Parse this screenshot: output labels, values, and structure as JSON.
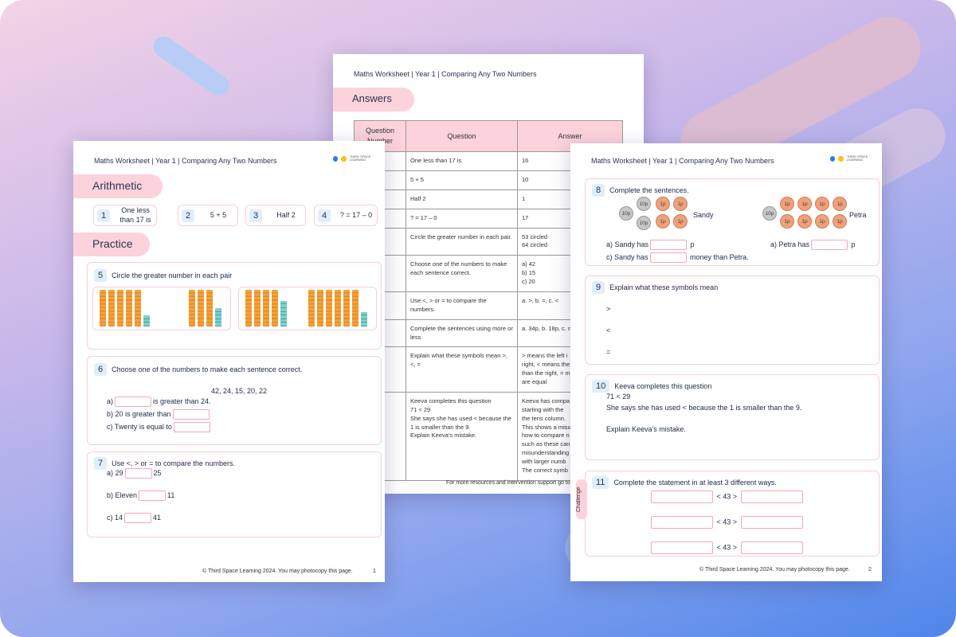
{
  "header": "Maths Worksheet | Year 1 | Comparing Any Two Numbers",
  "logo": {
    "text": "THIRD SPACE LEARNING",
    "colors": [
      "#2b7de9",
      "#f6c21c"
    ]
  },
  "colors": {
    "accent_pink": "#fcd3dc",
    "number_badge": "#dfeefb",
    "tens_rod": "#f4a23c",
    "ones_cube": "#7ed0c9"
  },
  "page1": {
    "arithmetic_title": "Arithmetic",
    "arithmetic": [
      {
        "n": "1",
        "text": "One less than 17 is"
      },
      {
        "n": "2",
        "text": "5 + 5"
      },
      {
        "n": "3",
        "text": "Half 2"
      },
      {
        "n": "4",
        "text": "? = 17 – 0"
      }
    ],
    "practice_title": "Practice",
    "q5": {
      "n": "5",
      "text": "Circle the greater number in each pair",
      "pairs": [
        [
          {
            "tens": 5,
            "ones": 3
          },
          {
            "tens": 3,
            "ones": 5
          }
        ],
        [
          {
            "tens": 4,
            "ones": 7
          },
          {
            "tens": 6,
            "ones": 4
          }
        ]
      ]
    },
    "q6": {
      "n": "6",
      "text": "Choose one of the numbers to make each sentence correct.",
      "numbers": "42, 24, 15, 20, 22",
      "a_pre": "a)",
      "a_post": "is greater than 24.",
      "b": "b) 20 is greater than",
      "c": "c) Twenty is equal to"
    },
    "q7": {
      "n": "7",
      "text": "Use <, > or = to compare the numbers.",
      "a_l": "a) 29",
      "a_r": "25",
      "b_l": "b) Eleven",
      "b_r": "11",
      "c_l": "c) 14",
      "c_r": "41"
    },
    "footer": "© Third Space Learning 2024. You may photocopy this page.",
    "page": "1"
  },
  "answers": {
    "title": "Answers",
    "columns": [
      "Question Number",
      "Question",
      "Answer"
    ],
    "rows": [
      [
        "One less than 17 is",
        "16"
      ],
      [
        "5 + 5",
        "10"
      ],
      [
        "Half 2",
        "1"
      ],
      [
        "? = 17 – 0",
        "17"
      ],
      [
        "Circle the greater number in each pair.",
        "53 circled\n64 circled"
      ],
      [
        "Choose one of the numbers to make each sentence correct.",
        "a) 42\nb) 15\nc) 20"
      ],
      [
        "Use <, > or = to compare the numbers.",
        "a. >, b. =, c. <"
      ],
      [
        "Complete the sentences using more or less",
        "a. 34p, b. 18p, c. m"
      ],
      [
        "Explain what these symbols mean >, <, =",
        "> means the left i\nright, < means the\nthan the right, = m\nare equal"
      ],
      [
        "Keeva completes this question\n71 < 29\nShe says she has used < because the 1 is smaller than the 9.\nExplain Keeva's mistake.",
        "Keeva has compa\nstarting with the\nthe tens column.\nThis shows a misu\nhow to compare n\nsuch as these can\nmisunderstanding\nwith larger numb\nThe correct symb"
      ]
    ],
    "footer": "For more resources and intervention support go to"
  },
  "page2": {
    "q8": {
      "n": "8",
      "text": "Complete the sentences.",
      "sandy": "Sandy",
      "petra": "Petra",
      "sandy_coins": [
        "10p",
        "10p",
        "10p",
        "1p",
        "1p",
        "1p",
        "1p"
      ],
      "petra_coins": [
        "10p",
        "1p",
        "1p",
        "1p",
        "1p",
        "1p",
        "1p",
        "1p",
        "1p"
      ],
      "a": "a) Sandy has",
      "a_unit": "p",
      "b": "a) Petra has",
      "b_unit": "p",
      "c": "c) Sandy has",
      "c_post": "money than Petra."
    },
    "q9": {
      "n": "9",
      "text": "Explain what these symbols mean",
      "symbols": [
        ">",
        "<",
        "="
      ]
    },
    "q10": {
      "n": "10",
      "text": "Keeva completes this question",
      "line1": "71 < 29",
      "line2": "She says she has used < because the 1 is smaller than the 9.",
      "line3": "Explain Keeva's mistake."
    },
    "q11": {
      "n": "11",
      "text": "Complete the statement in at least 3 different ways.",
      "middle": "< 43 >",
      "tag": "Challenge"
    },
    "footer": "© Third Space Learning 2024. You may photocopy this page.",
    "page": "2"
  }
}
